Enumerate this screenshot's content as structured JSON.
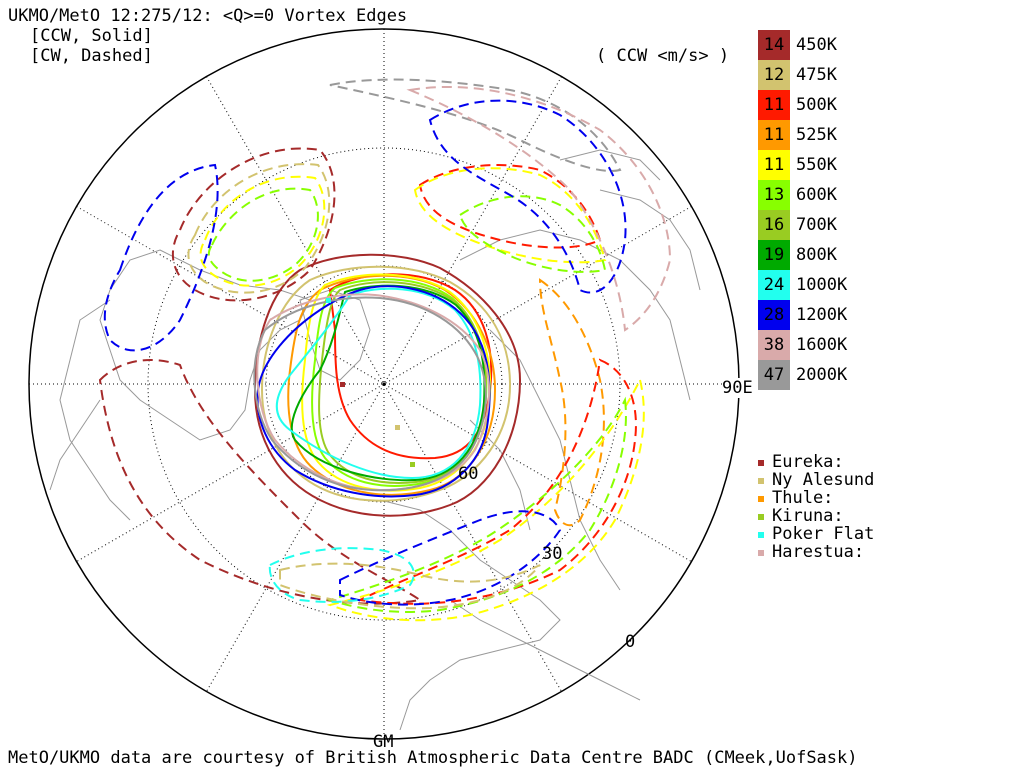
{
  "header": {
    "title": "UKMO/MetO 12:275/12: <Q>=0 Vortex Edges",
    "ccw_note": "[CCW, Solid]",
    "cw_note": "[CW, Dashed]",
    "units_label": "( CCW <m/s> )"
  },
  "map_labels": {
    "lon_90e": "90E",
    "lat_60": "60",
    "lat_30": "30",
    "lat_0": "0",
    "lon_gm": "GM"
  },
  "legend": [
    {
      "value": "14",
      "level": "450K",
      "color": "#a52a2a"
    },
    {
      "value": "12",
      "level": "475K",
      "color": "#d2c36f"
    },
    {
      "value": "11",
      "level": "500K",
      "color": "#ff1a00"
    },
    {
      "value": "11",
      "level": "525K",
      "color": "#ff9900"
    },
    {
      "value": "11",
      "level": "550K",
      "color": "#ffff00"
    },
    {
      "value": "13",
      "level": "600K",
      "color": "#88ff00"
    },
    {
      "value": "16",
      "level": "700K",
      "color": "#99cc22"
    },
    {
      "value": "19",
      "level": "800K",
      "color": "#00aa00"
    },
    {
      "value": "24",
      "level": "1000K",
      "color": "#22ffee"
    },
    {
      "value": "28",
      "level": "1200K",
      "color": "#0000ee"
    },
    {
      "value": "38",
      "level": "1600K",
      "color": "#d9aaaa"
    },
    {
      "value": "47",
      "level": "2000K",
      "color": "#999999"
    }
  ],
  "sites": [
    {
      "name": "Eureka:",
      "color": "#a52a2a"
    },
    {
      "name": "Ny Alesund",
      "color": "#d2c36f"
    },
    {
      "name": "Thule:",
      "color": "#ff9900"
    },
    {
      "name": "Kiruna:",
      "color": "#99cc22"
    },
    {
      "name": "Poker Flat",
      "color": "#22ffee"
    },
    {
      "name": "Harestua:",
      "color": "#d9aaaa"
    }
  ],
  "footer": {
    "credit": "MetO/UKMO data are courtesy of British Atmospheric Data Centre BADC (CMeek,UofSask)"
  }
}
